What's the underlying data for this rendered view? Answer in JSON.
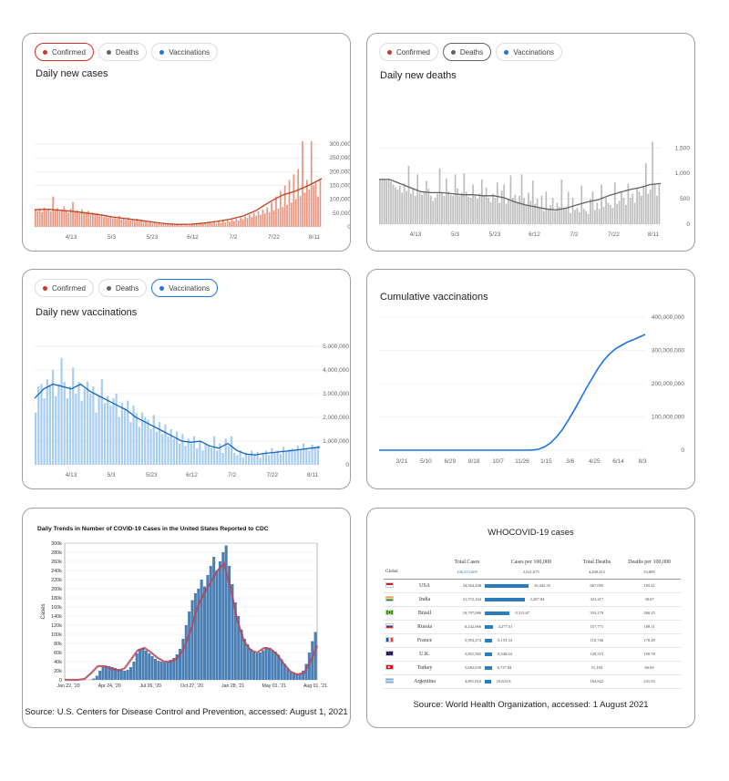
{
  "filter_chips": {
    "confirmed": "Confirmed",
    "deaths": "Deaths",
    "vaccinations": "Vaccinations",
    "colors": {
      "confirmed": "#d93025",
      "deaths": "#5f6368",
      "vaccinations": "#1a73e8"
    }
  },
  "cases_panel": {
    "title": "Daily new cases"
  },
  "deaths_panel": {
    "title": "Daily new deaths"
  },
  "vacc_panel": {
    "title": "Daily new vaccinations"
  },
  "cum_panel": {
    "title": "Cumulative vaccinations"
  },
  "cdc_panel": {
    "source": "Source: U.S. Centers for Disease Control and Prevention, accessed: August 1, 2021"
  },
  "who_panel": {
    "title": "WHOCOVID-19 cases",
    "source": "Source: World Health Organization, accessed: 1 August 2021",
    "headers": [
      "Total Cases",
      "Cases per 100,000",
      "Total Deaths",
      "Deaths per 100,000"
    ],
    "global": {
      "label": "Global",
      "total_cases": "196,553,009",
      "cases_per_100k": "2,521,675",
      "total_deaths": "4,200,412",
      "deaths_per_100k": "53,889"
    },
    "rows": [
      {
        "country": "USA",
        "flag": "us",
        "total_cases": "34,564,448",
        "cases_per_100k": "10,442.35",
        "bar": 1.0,
        "total_deaths": "607,095",
        "deaths_per_100k": "183.41"
      },
      {
        "country": "India",
        "flag": "in",
        "total_cases": "31,572,344",
        "cases_per_100k": "2,287.84",
        "bar": 0.91,
        "total_deaths": "423,217",
        "deaths_per_100k": "30.67"
      },
      {
        "country": "Brasil",
        "flag": "br",
        "total_cases": "19,797,086",
        "cases_per_100k": "9,313.67",
        "bar": 0.57,
        "total_deaths": "553,179",
        "deaths_per_100k": "260.25"
      },
      {
        "country": "Russia",
        "flag": "ru",
        "total_cases": "6,242,066",
        "cases_per_100k": "4,277.31",
        "bar": 0.18,
        "total_deaths": "157,771",
        "deaths_per_100k": "108.11"
      },
      {
        "country": "France",
        "flag": "fr",
        "total_cases": "5,953,274",
        "cases_per_100k": "9,153.34",
        "bar": 0.17,
        "total_deaths": "110,746",
        "deaths_per_100k": "170.28"
      },
      {
        "country": "U.K.",
        "flag": "uk",
        "total_cases": "5,801,565",
        "cases_per_100k": "8,546.04",
        "bar": 0.17,
        "total_deaths": "129,515",
        "deaths_per_100k": "190.78"
      },
      {
        "country": "Turkey",
        "flag": "tr",
        "total_cases": "5,682,630",
        "cases_per_100k": "6,737.84",
        "bar": 0.16,
        "total_deaths": "51,184",
        "deaths_per_100k": "60.69"
      },
      {
        "country": "Argentina",
        "flag": "ar",
        "total_cases": "4,891,810",
        "cases_per_100k": "10,823.8",
        "bar": 0.14,
        "total_deaths": "104,822",
        "deaths_per_100k": "231.93"
      }
    ]
  },
  "chart_data": [
    {
      "type": "bar",
      "id": "daily-new-cases",
      "title": "Daily new cases",
      "x_ticks": [
        "4/13",
        "5/3",
        "5/23",
        "6/12",
        "7/2",
        "7/22",
        "8/11"
      ],
      "y_ticks": [
        "300,000",
        "250,000",
        "200,000",
        "150,000",
        "100,000",
        "50,000",
        "0"
      ],
      "ylim": [
        0,
        320000
      ],
      "bar_color": "#e9957f",
      "line_color": "#c1401f",
      "values": [
        62000,
        58000,
        66000,
        54000,
        70000,
        60000,
        64000,
        56000,
        110000,
        60000,
        68000,
        56000,
        62000,
        74000,
        58000,
        52000,
        66000,
        90000,
        56000,
        60000,
        50000,
        64000,
        54000,
        48000,
        58000,
        46000,
        52000,
        44000,
        50000,
        40000,
        46000,
        36000,
        42000,
        34000,
        38000,
        32000,
        36000,
        30000,
        40000,
        28000,
        32000,
        26000,
        34000,
        24000,
        28000,
        22000,
        30000,
        20000,
        26000,
        18000,
        22000,
        16000,
        20000,
        14000,
        18000,
        12000,
        16000,
        10000,
        14000,
        9000,
        12000,
        8000,
        11000,
        7000,
        10000,
        6000,
        9000,
        5000,
        8000,
        6000,
        9000,
        10000,
        8000,
        12000,
        9000,
        14000,
        10000,
        15000,
        12000,
        16000,
        13000,
        18000,
        14000,
        20000,
        15000,
        22000,
        17000,
        24000,
        19000,
        26000,
        21000,
        30000,
        24000,
        34000,
        28000,
        38000,
        32000,
        44000,
        36000,
        50000,
        40000,
        56000,
        44000,
        62000,
        48000,
        70000,
        54000,
        90000,
        60000,
        110000,
        66000,
        130000,
        72000,
        150000,
        80000,
        170000,
        88000,
        190000,
        100000,
        210000,
        112000,
        310000,
        124000,
        170000,
        136000,
        310000,
        150000,
        160000,
        110000,
        175000
      ],
      "trend": [
        62000,
        64000,
        60000,
        56000,
        50000,
        44000,
        36000,
        30000,
        24000,
        18000,
        12000,
        9000,
        10000,
        14000,
        20000,
        28000,
        40000,
        60000,
        90000,
        115000,
        130000,
        150000,
        175000
      ]
    },
    {
      "type": "bar",
      "id": "daily-new-deaths",
      "title": "Daily new deaths",
      "x_ticks": [
        "4/13",
        "5/3",
        "5/23",
        "6/12",
        "7/2",
        "7/22",
        "8/11"
      ],
      "y_ticks": [
        "1,500",
        "1,000",
        "500",
        "0"
      ],
      "ylim": [
        0,
        1650
      ],
      "bar_color": "#bdbdbd",
      "line_color": "#5f6368",
      "values": [
        880,
        880,
        880,
        860,
        900,
        840,
        780,
        720,
        680,
        760,
        620,
        800,
        650,
        1150,
        600,
        700,
        560,
        980,
        620,
        580,
        640,
        850,
        700,
        560,
        460,
        520,
        600,
        1100,
        620,
        560,
        900,
        640,
        580,
        560,
        980,
        700,
        560,
        620,
        1000,
        640,
        540,
        520,
        780,
        560,
        500,
        600,
        880,
        560,
        720,
        520,
        440,
        600,
        520,
        820,
        420,
        660,
        780,
        400,
        500,
        960,
        520,
        580,
        440,
        560,
        980,
        520,
        380,
        620,
        460,
        860,
        400,
        500,
        320,
        560,
        260,
        640,
        300,
        380,
        520,
        260,
        420,
        340,
        880,
        300,
        300,
        640,
        220,
        520,
        280,
        320,
        240,
        760,
        300,
        260,
        200,
        500,
        640,
        280,
        420,
        300,
        780,
        340,
        520,
        420,
        380,
        320,
        820,
        400,
        460,
        640,
        520,
        380,
        800,
        520,
        600,
        420,
        700,
        640,
        560,
        760,
        1200,
        600,
        680,
        1620,
        800,
        560,
        780
      ],
      "trend": [
        880,
        880,
        800,
        720,
        640,
        620,
        620,
        600,
        580,
        580,
        560,
        560,
        520,
        440,
        380,
        340,
        300,
        280,
        320,
        380,
        440,
        480,
        560,
        620,
        680,
        720,
        780,
        800
      ]
    },
    {
      "type": "bar",
      "id": "daily-new-vaccinations",
      "title": "Daily new vaccinations",
      "x_ticks": [
        "4/13",
        "5/3",
        "5/23",
        "6/12",
        "7/2",
        "7/22",
        "8/11"
      ],
      "y_ticks": [
        "5,000,000",
        "4,000,000",
        "3,000,000",
        "2,000,000",
        "1,000,000",
        "0"
      ],
      "ylim": [
        0,
        5300000
      ],
      "bar_color": "#a8cdf2",
      "line_color": "#1565c0",
      "values": [
        2200000,
        3300000,
        3400000,
        2800000,
        3600000,
        3300000,
        4000000,
        2900000,
        3400000,
        4500000,
        3500000,
        2800000,
        3300000,
        4100000,
        3000000,
        3500000,
        2700000,
        3200000,
        3500000,
        3000000,
        3300000,
        2200000,
        2900000,
        3600000,
        2600000,
        2900000,
        2500000,
        2800000,
        3000000,
        2000000,
        2600000,
        2400000,
        2700000,
        1800000,
        2500000,
        2200000,
        1600000,
        2200000,
        2000000,
        1900000,
        1500000,
        2100000,
        1400000,
        1800000,
        1300000,
        1700000,
        1200000,
        1500000,
        1100000,
        1400000,
        900000,
        1300000,
        800000,
        1100000,
        900000,
        1200000,
        700000,
        1000000,
        600000,
        900000,
        800000,
        700000,
        1200000,
        600000,
        900000,
        500000,
        1100000,
        800000,
        1200000,
        500000,
        400000,
        600000,
        300000,
        500000,
        400000,
        600000,
        450000,
        550000,
        300000,
        500000,
        600000,
        400000,
        700000,
        500000,
        600000,
        450000,
        750000,
        550000,
        650000,
        700000,
        600000,
        800000,
        650000,
        900000,
        700000,
        600000,
        850000,
        750000,
        800000
      ],
      "trend": [
        2800000,
        3200000,
        3400000,
        3300000,
        3200000,
        3400000,
        3100000,
        2900000,
        2700000,
        2500000,
        2300000,
        2000000,
        1800000,
        1600000,
        1400000,
        1200000,
        1000000,
        950000,
        1000000,
        800000,
        700000,
        900000,
        600000,
        450000,
        420000,
        480000,
        520000,
        560000,
        600000,
        650000,
        700000,
        740000
      ]
    },
    {
      "type": "line",
      "id": "cumulative-vaccinations",
      "title": "Cumulative vaccinations",
      "x_ticks": [
        "3/21",
        "5/10",
        "6/29",
        "8/18",
        "10/7",
        "11/26",
        "1/15",
        "3/6",
        "4/25",
        "6/14",
        "8/3"
      ],
      "y_ticks": [
        "400,000,000",
        "300,000,000",
        "200,000,000",
        "100,000,000",
        "0"
      ],
      "ylim": [
        0,
        400000000
      ],
      "line_color": "#1a73e8",
      "values": [
        0,
        0,
        0,
        0,
        0,
        0,
        0,
        0,
        0,
        0,
        0,
        0,
        0,
        0,
        0,
        0,
        0,
        0,
        0,
        0,
        0,
        0,
        0,
        0,
        0,
        0,
        500000,
        3000000,
        10000000,
        22000000,
        40000000,
        62000000,
        90000000,
        120000000,
        152000000,
        185000000,
        215000000,
        245000000,
        270000000,
        290000000,
        305000000,
        315000000,
        325000000,
        332000000,
        340000000,
        348000000
      ]
    },
    {
      "type": "bar",
      "id": "cdc-daily-trends",
      "title": "Daily Trends in Number of COVID-19 Cases in the United States Reported to CDC",
      "ylabel": "Cases",
      "x_ticks": [
        "Jan 22, '20",
        "Apr 24, '20",
        "Jul 26, '20",
        "Oct 27, '20",
        "Jan 28, '21",
        "May 01, '21",
        "Aug 01, '21"
      ],
      "y_ticks": [
        "300k",
        "280k",
        "260k",
        "240k",
        "220k",
        "200k",
        "180k",
        "160k",
        "140k",
        "120k",
        "100k",
        "80k",
        "60k",
        "40k",
        "20k",
        "0"
      ],
      "ylim": [
        0,
        300000
      ],
      "bar_color": "#4a7fb5",
      "line_color": "#b5485a",
      "values": [
        0,
        0,
        0,
        0,
        0,
        0,
        0,
        0,
        500,
        3000,
        9000,
        20000,
        28000,
        31000,
        30000,
        28000,
        26000,
        24000,
        22000,
        20000,
        22000,
        28000,
        40000,
        58000,
        68000,
        70000,
        64000,
        58000,
        52000,
        46000,
        42000,
        40000,
        38000,
        40000,
        44000,
        48000,
        56000,
        68000,
        90000,
        120000,
        150000,
        175000,
        190000,
        200000,
        220000,
        205000,
        230000,
        250000,
        270000,
        240000,
        260000,
        280000,
        295000,
        250000,
        210000,
        170000,
        140000,
        110000,
        90000,
        78000,
        68000,
        62000,
        58000,
        60000,
        65000,
        72000,
        70000,
        66000,
        62000,
        55000,
        45000,
        35000,
        25000,
        18000,
        14000,
        12000,
        13000,
        20000,
        35000,
        60000,
        85000,
        105000
      ],
      "trend": [
        0,
        0,
        0,
        2000,
        15000,
        30000,
        30000,
        25000,
        20000,
        25000,
        45000,
        65000,
        70000,
        60000,
        48000,
        40000,
        40000,
        48000,
        70000,
        110000,
        160000,
        190000,
        215000,
        240000,
        255000,
        200000,
        130000,
        85000,
        65000,
        60000,
        70000,
        68000,
        55000,
        35000,
        18000,
        12000,
        15000,
        40000,
        75000
      ]
    }
  ]
}
